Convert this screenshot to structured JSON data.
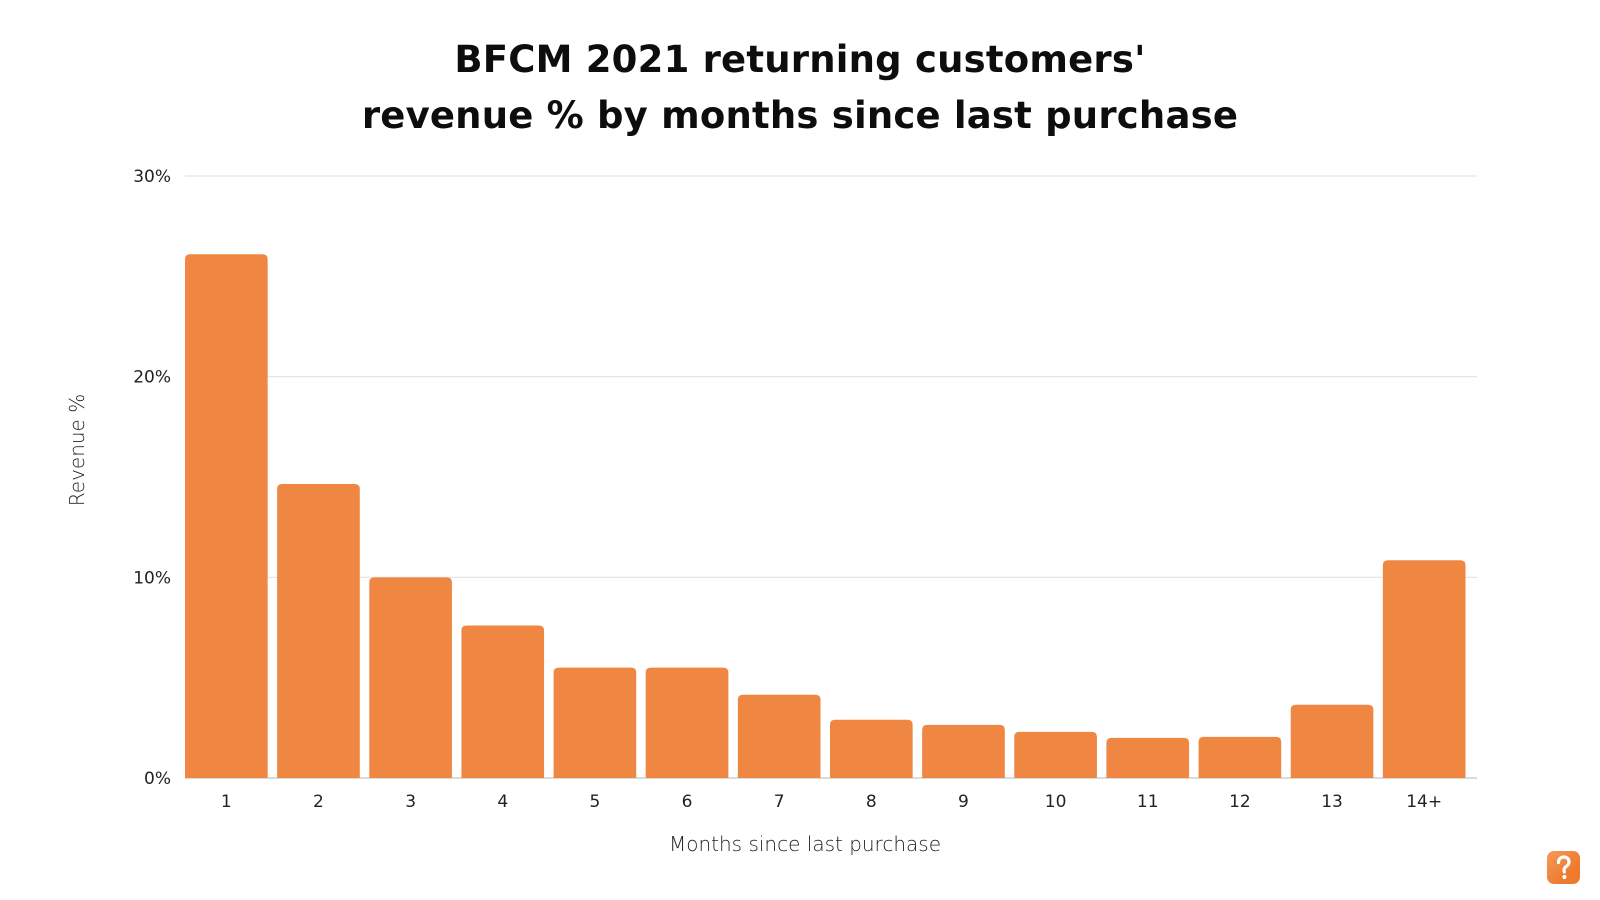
{
  "chart_data": {
    "type": "bar",
    "title": "BFCM 2021 returning customers' revenue % by months since last purchase",
    "title_lines": [
      "BFCM 2021 returning customers'",
      "revenue % by months since last purchase"
    ],
    "xlabel": "Months since last purchase",
    "ylabel": "Revenue %",
    "categories": [
      "1",
      "2",
      "3",
      "4",
      "5",
      "6",
      "7",
      "8",
      "9",
      "10",
      "11",
      "12",
      "13",
      "14+"
    ],
    "values": [
      26.1,
      14.65,
      10.0,
      7.6,
      5.5,
      5.5,
      4.15,
      2.9,
      2.65,
      2.3,
      2.0,
      2.05,
      3.65,
      10.85
    ],
    "unit": "%",
    "ylim": [
      0,
      30
    ],
    "yticks": [
      0,
      10,
      20,
      30
    ],
    "ytick_labels": [
      "0%",
      "10%",
      "20%",
      "30%"
    ],
    "grid": true,
    "legend": "none",
    "bar_color": "#EF8642",
    "grid_color": "#E3E3E3"
  },
  "branding": {
    "logo": "orange-s-logo-icon"
  }
}
